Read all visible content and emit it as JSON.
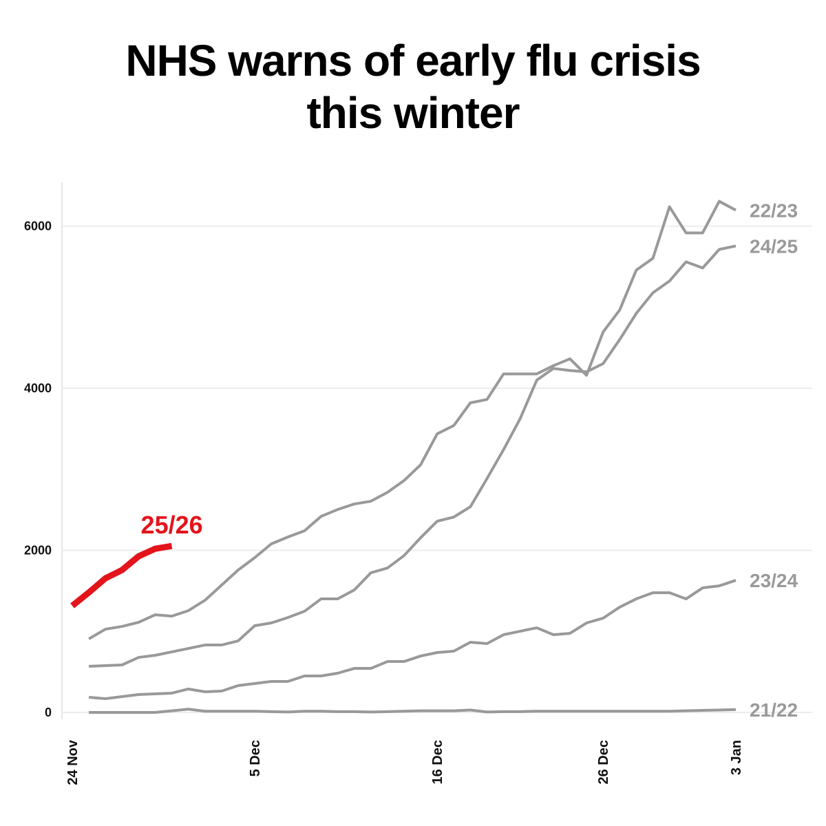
{
  "chart_data": {
    "type": "line",
    "title": "NHS warns of early flu crisis this winter",
    "categories": [
      "24 Nov",
      null,
      null,
      null,
      null,
      null,
      null,
      null,
      null,
      null,
      null,
      "5 Dec",
      null,
      null,
      null,
      null,
      null,
      null,
      null,
      null,
      null,
      null,
      "16 Dec",
      null,
      null,
      null,
      null,
      null,
      null,
      null,
      null,
      null,
      "26 Dec",
      null,
      null,
      null,
      null,
      null,
      null,
      null,
      "3 Jan"
    ],
    "ylim": [
      -85,
      6540
    ],
    "yticks": [
      0,
      2000,
      4000,
      6000
    ],
    "grid": true,
    "series": [
      {
        "name": "22/23",
        "color": "#999999",
        "values": [
          null,
          908,
          1027,
          1061,
          1112,
          1205,
          1188,
          1256,
          1384,
          1570,
          1757,
          1910,
          2080,
          2165,
          2241,
          2419,
          2504,
          2572,
          2606,
          2716,
          2861,
          3056,
          3438,
          3540,
          3820,
          3862,
          4177,
          4177,
          4177,
          4278,
          4363,
          4160,
          4694,
          4966,
          5458,
          5603,
          6239,
          5917,
          5917,
          6307,
          6197
        ]
      },
      {
        "name": "24/25",
        "color": "#999999",
        "values": [
          null,
          569,
          577,
          586,
          679,
          705,
          747,
          789,
          832,
          832,
          883,
          1070,
          1104,
          1171,
          1248,
          1401,
          1401,
          1511,
          1723,
          1782,
          1935,
          2156,
          2360,
          2411,
          2538,
          2886,
          3243,
          3625,
          4100,
          4244,
          4219,
          4202,
          4304,
          4601,
          4924,
          5178,
          5323,
          5560,
          5484,
          5713,
          5756
        ]
      },
      {
        "name": "23/24",
        "color": "#999999",
        "values": [
          null,
          187,
          170,
          195,
          221,
          229,
          238,
          289,
          255,
          263,
          331,
          357,
          382,
          382,
          450,
          450,
          484,
          543,
          543,
          628,
          628,
          696,
          739,
          756,
          866,
          849,
          959,
          1002,
          1044,
          959,
          976,
          1104,
          1163,
          1299,
          1401,
          1477,
          1477,
          1401,
          1537,
          1562,
          1630
        ]
      },
      {
        "name": "21/22",
        "color": "#999999",
        "values": [
          null,
          0,
          0,
          0,
          0,
          0,
          20,
          40,
          15,
          15,
          15,
          15,
          10,
          5,
          15,
          15,
          10,
          10,
          5,
          10,
          15,
          20,
          20,
          20,
          30,
          5,
          10,
          10,
          15,
          15,
          15,
          15,
          15,
          15,
          15,
          15,
          15,
          20,
          25,
          30,
          35
        ]
      },
      {
        "name": "25/26",
        "color": "#e3141b",
        "values": [
          1316,
          1480,
          1655,
          1757,
          1927,
          2020,
          2054,
          null,
          null,
          null,
          null,
          null,
          null,
          null,
          null,
          null,
          null,
          null,
          null,
          null,
          null,
          null,
          null,
          null,
          null,
          null,
          null,
          null,
          null,
          null,
          null,
          null,
          null,
          null,
          null,
          null,
          null,
          null,
          null,
          null,
          null
        ]
      }
    ]
  }
}
